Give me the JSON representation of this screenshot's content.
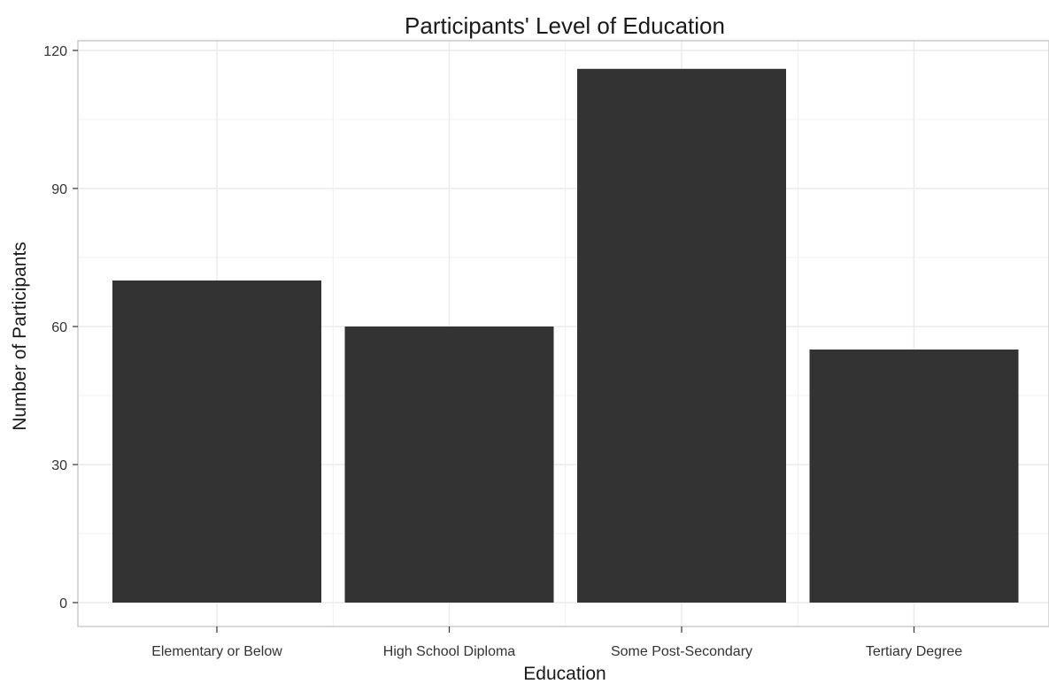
{
  "chart_data": {
    "type": "bar",
    "title": "Participants' Level of Education",
    "xlabel": "Education",
    "ylabel": "Number of Participants",
    "categories": [
      "Elementary or Below",
      "High School Diploma",
      "Some Post-Secondary",
      "Tertiary Degree"
    ],
    "values": [
      70,
      60,
      116,
      55
    ],
    "ylim": [
      -5,
      122
    ],
    "yticks": [
      0,
      30,
      60,
      90,
      120
    ],
    "ytick_labels": [
      "0",
      "30",
      "60",
      "90",
      "120"
    ],
    "grid": true,
    "legend": "none",
    "bar_color": "#333333",
    "gridline_color": "#ebebeb",
    "panel_border_color": "#cccccc"
  }
}
